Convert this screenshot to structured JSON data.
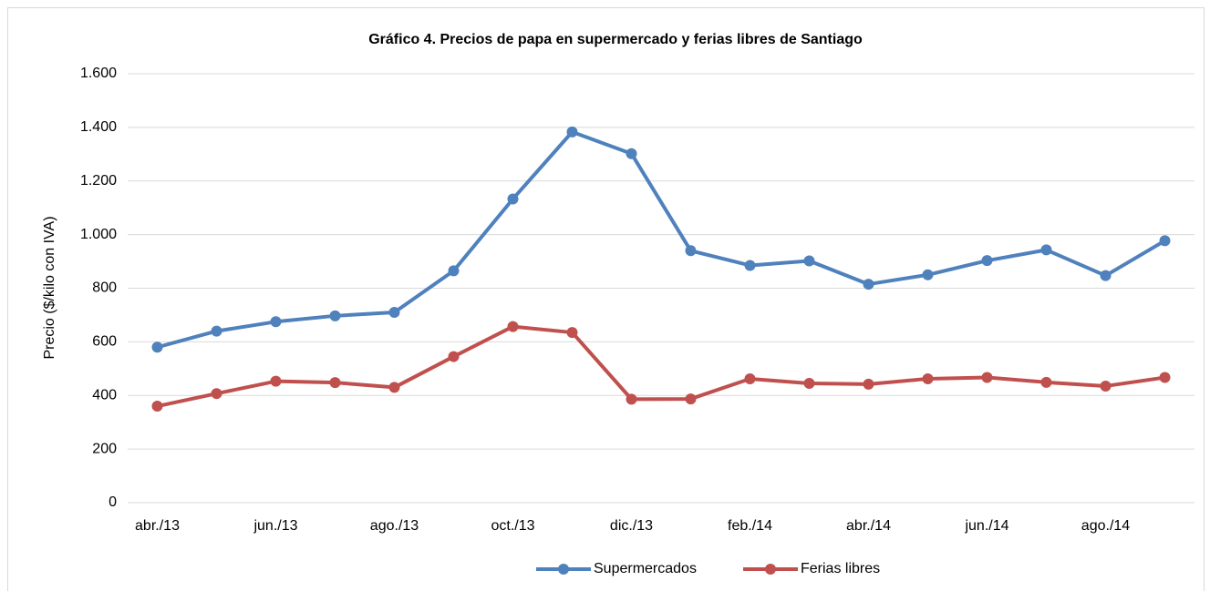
{
  "chart_data": {
    "type": "line",
    "title": "Gráfico 4. Precios de papa en supermercado y ferias libres de Santiago",
    "y_label": "Precio ($/kilo con IVA)",
    "categories": [
      "abr./13",
      null,
      "jun./13",
      null,
      "ago./13",
      null,
      "oct./13",
      null,
      "dic./13",
      null,
      "feb./14",
      null,
      "abr./14",
      null,
      "jun./14",
      null,
      "ago./14",
      null
    ],
    "series": [
      {
        "name": "Supermercados",
        "color": "#4f81bd",
        "values": [
          580,
          640,
          675,
          697,
          710,
          865,
          1133,
          1383,
          1302,
          940,
          885,
          902,
          815,
          850,
          903,
          943,
          847,
          977
        ]
      },
      {
        "name": "Ferias libres",
        "color": "#c0504d",
        "values": [
          360,
          407,
          453,
          448,
          430,
          545,
          657,
          635,
          386,
          387,
          462,
          445,
          442,
          462,
          467,
          449,
          435,
          467
        ]
      }
    ],
    "ylim": [
      0,
      1600
    ],
    "yticks": [
      0,
      200,
      400,
      600,
      800,
      {
        "value": 1000,
        "label": "1.000"
      },
      {
        "value": 1200,
        "label": "1.200"
      },
      {
        "value": 1400,
        "label": "1.400"
      },
      {
        "value": 1600,
        "label": "1.600"
      }
    ],
    "grid": true,
    "legend": "bottom"
  }
}
